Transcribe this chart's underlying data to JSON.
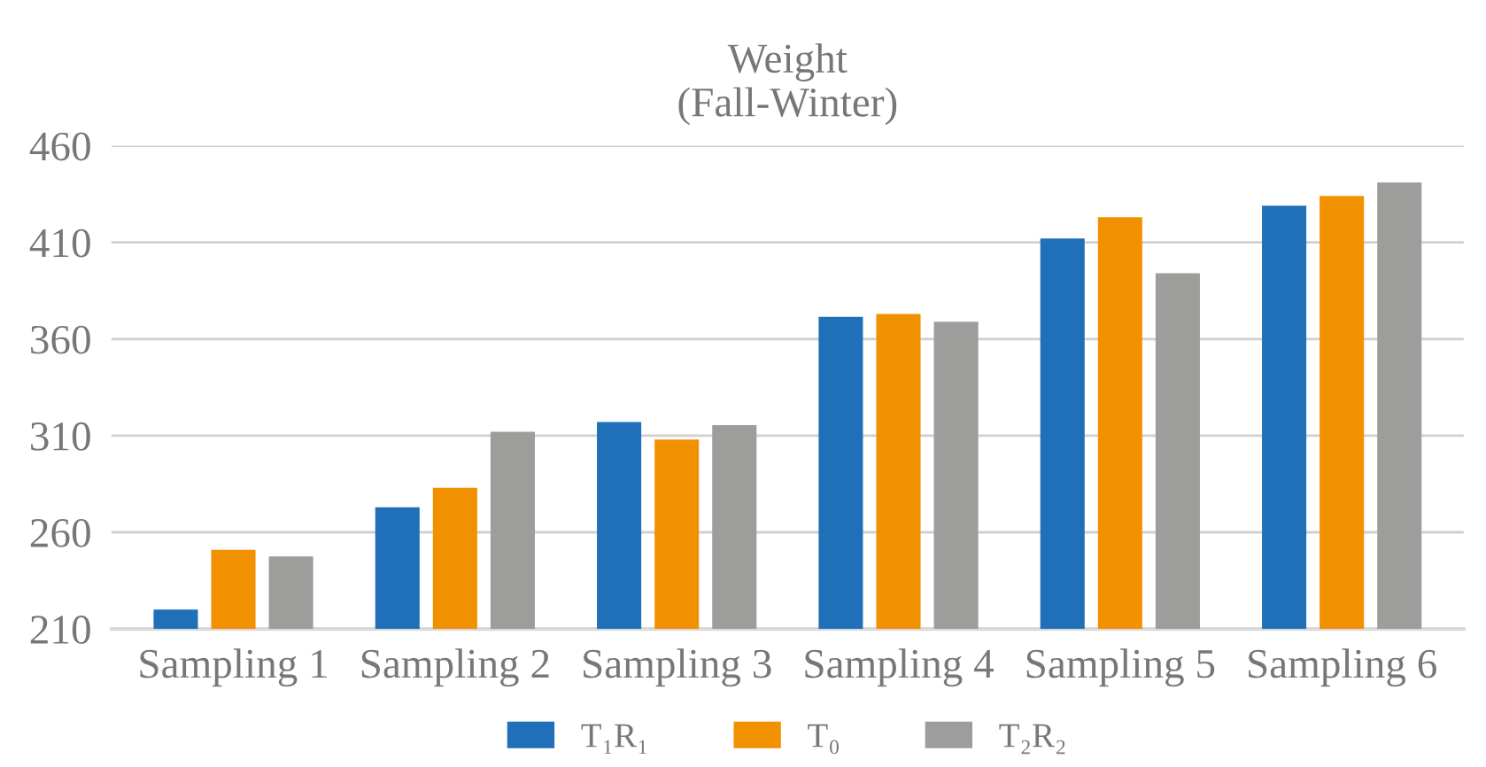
{
  "chart_data": {
    "type": "bar",
    "title": "Weight\n(Fall-Winter)",
    "categories": [
      "Sampling 1",
      "Sampling 2",
      "Sampling 3",
      "Sampling 4",
      "Sampling 5",
      "Sampling 6"
    ],
    "series": [
      {
        "name": "T₁R₁",
        "color": "#1f70b8",
        "values": [
          220,
          273,
          317,
          371.5,
          412,
          429
        ]
      },
      {
        "name": "T₀",
        "color": "#f29100",
        "values": [
          251,
          283,
          308,
          373,
          423,
          434
        ]
      },
      {
        "name": "T₂R₂",
        "color": "#9d9d9c",
        "values": [
          247.5,
          312,
          315.5,
          369,
          394,
          441
        ]
      }
    ],
    "ylim": [
      210,
      460
    ],
    "yticks": [
      210,
      260,
      310,
      360,
      410,
      460
    ],
    "grid": "y",
    "legend": "bottom"
  }
}
